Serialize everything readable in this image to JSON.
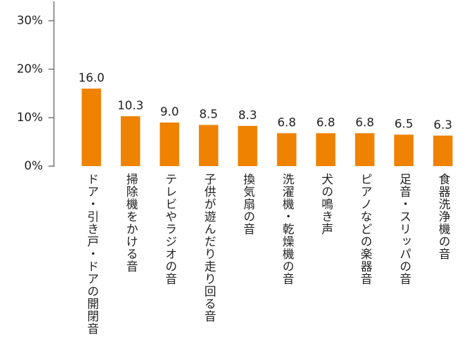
{
  "chart_data": {
    "type": "bar",
    "categories": [
      "ドア・引き戸・ドアの開閉音",
      "掃除機をかける音",
      "テレビやラジオの音",
      "子供が遊んだり走り回る音",
      "換気扇の音",
      "洗濯機・乾燥機の音",
      "犬の鳴き声",
      "ピアノなどの楽器音",
      "足音・スリッパの音",
      "食器洗浄機の音"
    ],
    "values": [
      16.0,
      10.3,
      9.0,
      8.5,
      8.3,
      6.8,
      6.8,
      6.8,
      6.5,
      6.3
    ],
    "value_labels": [
      "16.0",
      "10.3",
      "9.0",
      "8.5",
      "8.3",
      "6.8",
      "6.8",
      "6.8",
      "6.5",
      "6.3"
    ],
    "color": "#ef8200",
    "ylim": [
      0,
      34
    ],
    "yticks": [
      {
        "value": 0,
        "label": "0%"
      },
      {
        "value": 10,
        "label": "10%"
      },
      {
        "value": 20,
        "label": "20%"
      },
      {
        "value": 30,
        "label": "30%"
      }
    ],
    "grid": false
  }
}
